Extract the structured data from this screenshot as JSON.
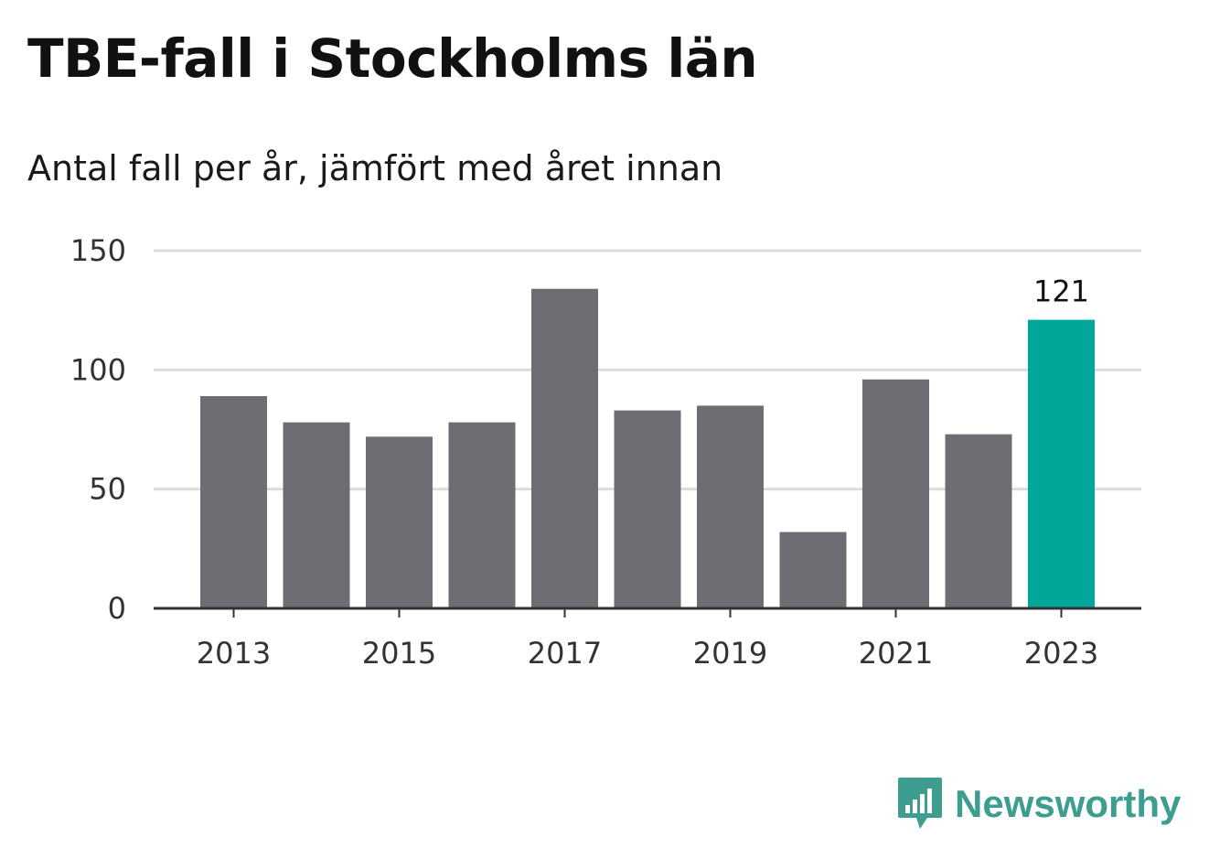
{
  "title": "TBE-fall i Stockholms län",
  "subtitle": "Antal fall per år, jämfört med året innan",
  "brand": {
    "name": "Newsworthy",
    "icon": "newsworthy-logo-icon",
    "color": "#3d9d8f"
  },
  "chart_data": {
    "type": "bar",
    "categories": [
      "2013",
      "2014",
      "2015",
      "2016",
      "2017",
      "2018",
      "2019",
      "2020",
      "2021",
      "2022",
      "2023"
    ],
    "values": [
      89,
      78,
      72,
      78,
      134,
      83,
      85,
      32,
      96,
      73,
      121
    ],
    "ylim": [
      0,
      150
    ],
    "yticks": [
      0,
      50,
      100,
      150
    ],
    "xtick_labels": [
      "2013",
      "2015",
      "2017",
      "2019",
      "2021",
      "2023"
    ],
    "highlight": {
      "category": "2023",
      "label": "121"
    },
    "colors": {
      "bar": "#6e6d73",
      "highlight": "#00a69a",
      "grid": "#dcdcdc",
      "axis": "#333333"
    },
    "grid": true,
    "xlabel": "",
    "ylabel": ""
  }
}
